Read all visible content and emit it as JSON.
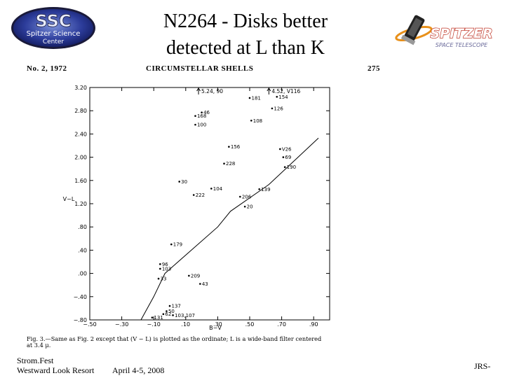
{
  "slide": {
    "title_line1": "N2264 - Disks better",
    "title_line2": "detected at L than K"
  },
  "logos": {
    "ssc_main": "SSC",
    "ssc_sub1": "Spitzer Science",
    "ssc_sub2": "Center",
    "spitzer_main": "SPITZER",
    "spitzer_sub": "SPACE TELESCOPE"
  },
  "scan": {
    "issue": "No. 2, 1972",
    "heading": "CIRCUMSTELLAR SHELLS",
    "page_number": "275",
    "caption_line1": "Fig. 3.—Same as Fig. 2 except that (V − L) is plotted as the ordinate; L is a wide-band filter centered",
    "caption_line2": "at 3.4 μ."
  },
  "footer": {
    "line1": "Strom.Fest",
    "line2": "Westward Look Resort",
    "date": "April 4-5, 2008",
    "credit": "JRS-"
  },
  "chart_data": {
    "type": "scatter",
    "xlabel": "B−V",
    "ylabel": "V−L",
    "x_ticks": [
      "−.50",
      "−.30",
      "−.10",
      ".10",
      ".30",
      ".50",
      ".70",
      ".90"
    ],
    "x_tick_values": [
      -0.5,
      -0.3,
      -0.1,
      0.1,
      0.3,
      0.5,
      0.7,
      0.9
    ],
    "y_ticks": [
      "3.20",
      "2.80",
      "2.40",
      "2.00",
      "1.60",
      "1.20",
      ".80",
      ".40",
      ".00",
      "−.40",
      "−.80"
    ],
    "y_tick_values": [
      3.2,
      2.8,
      2.4,
      2.0,
      1.6,
      1.2,
      0.8,
      0.4,
      0.0,
      -0.4,
      -0.8
    ],
    "xlim": [
      -0.5,
      1.0
    ],
    "ylim": [
      -0.8,
      3.2
    ],
    "upper_limit_labels": [
      "5.24, 90",
      "4.52, V116"
    ],
    "upper_limits": [
      {
        "x": 0.18,
        "y": 3.2
      },
      {
        "x": 0.62,
        "y": 3.2
      }
    ],
    "points": [
      {
        "label": "181",
        "x": 0.5,
        "y": 3.02
      },
      {
        "label": "154",
        "x": 0.67,
        "y": 3.04
      },
      {
        "label": "126",
        "x": 0.64,
        "y": 2.84
      },
      {
        "label": "46",
        "x": 0.2,
        "y": 2.77
      },
      {
        "label": "168",
        "x": 0.16,
        "y": 2.71
      },
      {
        "label": "108",
        "x": 0.51,
        "y": 2.63
      },
      {
        "label": "100",
        "x": 0.16,
        "y": 2.56
      },
      {
        "label": "156",
        "x": 0.37,
        "y": 2.18
      },
      {
        "label": "V26",
        "x": 0.69,
        "y": 2.14
      },
      {
        "label": "69",
        "x": 0.71,
        "y": 2.0
      },
      {
        "label": "228",
        "x": 0.34,
        "y": 1.89
      },
      {
        "label": "190",
        "x": 0.72,
        "y": 1.83
      },
      {
        "label": "30",
        "x": 0.06,
        "y": 1.58
      },
      {
        "label": "104",
        "x": 0.26,
        "y": 1.46
      },
      {
        "label": "139",
        "x": 0.56,
        "y": 1.45
      },
      {
        "label": "222",
        "x": 0.15,
        "y": 1.35
      },
      {
        "label": "206",
        "x": 0.44,
        "y": 1.32
      },
      {
        "label": "20",
        "x": 0.47,
        "y": 1.15
      },
      {
        "label": "179",
        "x": 0.01,
        "y": 0.5
      },
      {
        "label": "96",
        "x": -0.06,
        "y": 0.16
      },
      {
        "label": "103",
        "x": -0.06,
        "y": 0.08
      },
      {
        "label": "33",
        "x": -0.07,
        "y": -0.09
      },
      {
        "label": "209",
        "x": 0.12,
        "y": -0.04
      },
      {
        "label": "43",
        "x": 0.19,
        "y": -0.18
      },
      {
        "label": "137",
        "x": 0.0,
        "y": -0.56
      },
      {
        "label": "50",
        "x": -0.02,
        "y": -0.65
      },
      {
        "label": "62",
        "x": -0.04,
        "y": -0.7
      },
      {
        "label": "103,107",
        "x": 0.02,
        "y": -0.72
      },
      {
        "label": "131",
        "x": -0.11,
        "y": -0.76
      }
    ],
    "curve": [
      {
        "x": -0.18,
        "y": -0.8
      },
      {
        "x": -0.1,
        "y": -0.4
      },
      {
        "x": -0.03,
        "y": 0.0
      },
      {
        "x": 0.3,
        "y": 0.8
      },
      {
        "x": 0.38,
        "y": 1.07
      },
      {
        "x": 0.62,
        "y": 1.53
      },
      {
        "x": 0.93,
        "y": 2.33
      }
    ]
  }
}
